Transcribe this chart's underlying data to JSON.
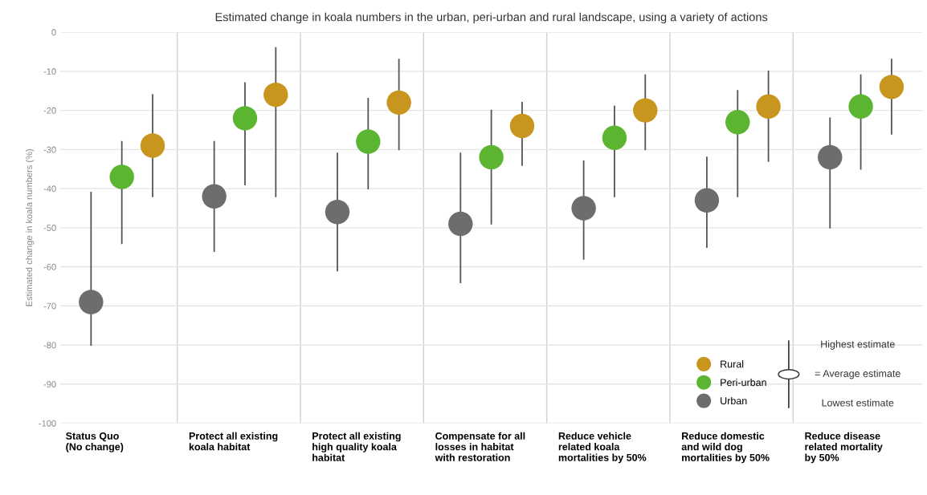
{
  "chart_data": {
    "type": "scatter",
    "title": "Estimated change in koala numbers in the urban, peri-urban and rural landscape, using a variety of actions",
    "ylabel": "Estimated change in koala numbers (%)",
    "categories": [
      "Status Quo\n(No change)",
      "Protect all existing\nkoala habitat",
      "Protect all existing\nhigh quality koala\nhabitat",
      "Compensate for all\nlosses in habitat\nwith restoration",
      "Reduce vehicle\nrelated koala\nmortalities by 50%",
      "Reduce domestic\nand wild dog\nmortalities by 50%",
      "Reduce disease\nrelated mortality\nby 50%"
    ],
    "series": [
      {
        "name": "Urban",
        "color": "#6d6d6d",
        "values": [
          -69,
          -42,
          -46,
          -49,
          -45,
          -43,
          -32
        ],
        "errors": [
          [
            -80,
            -41
          ],
          [
            -56,
            -28
          ],
          [
            -61,
            -31
          ],
          [
            -64,
            -31
          ],
          [
            -58,
            -33
          ],
          [
            -55,
            -32
          ],
          [
            -50,
            -22
          ]
        ]
      },
      {
        "name": "Peri-urban",
        "color": "#5cb531",
        "values": [
          -37,
          -22,
          -28,
          -32,
          -27,
          -23,
          -19
        ],
        "errors": [
          [
            -54,
            -28
          ],
          [
            -39,
            -13
          ],
          [
            -40,
            -17
          ],
          [
            -49,
            -20
          ],
          [
            -42,
            -19
          ],
          [
            -42,
            -15
          ],
          [
            -35,
            -11
          ]
        ]
      },
      {
        "name": "Rural",
        "color": "#c8961e",
        "values": [
          -29,
          -16,
          -18,
          -24,
          -20,
          -19,
          -14
        ],
        "errors": [
          [
            -42,
            -16
          ],
          [
            -42,
            -4
          ],
          [
            -30,
            -7
          ],
          [
            -34,
            -18
          ],
          [
            -30,
            -11
          ],
          [
            -33,
            -10
          ],
          [
            -26,
            -7
          ]
        ]
      }
    ],
    "ylim": [
      -100,
      0
    ],
    "yticks": [
      -100,
      -90,
      -80,
      -70,
      -60,
      -50,
      -40,
      -30,
      -20,
      -10,
      0
    ],
    "grid": "y",
    "legend": "bottom right",
    "marker": "circle",
    "annotations": [
      "Highest estimate",
      "= Average estimate",
      "Lowest estimate"
    ]
  }
}
